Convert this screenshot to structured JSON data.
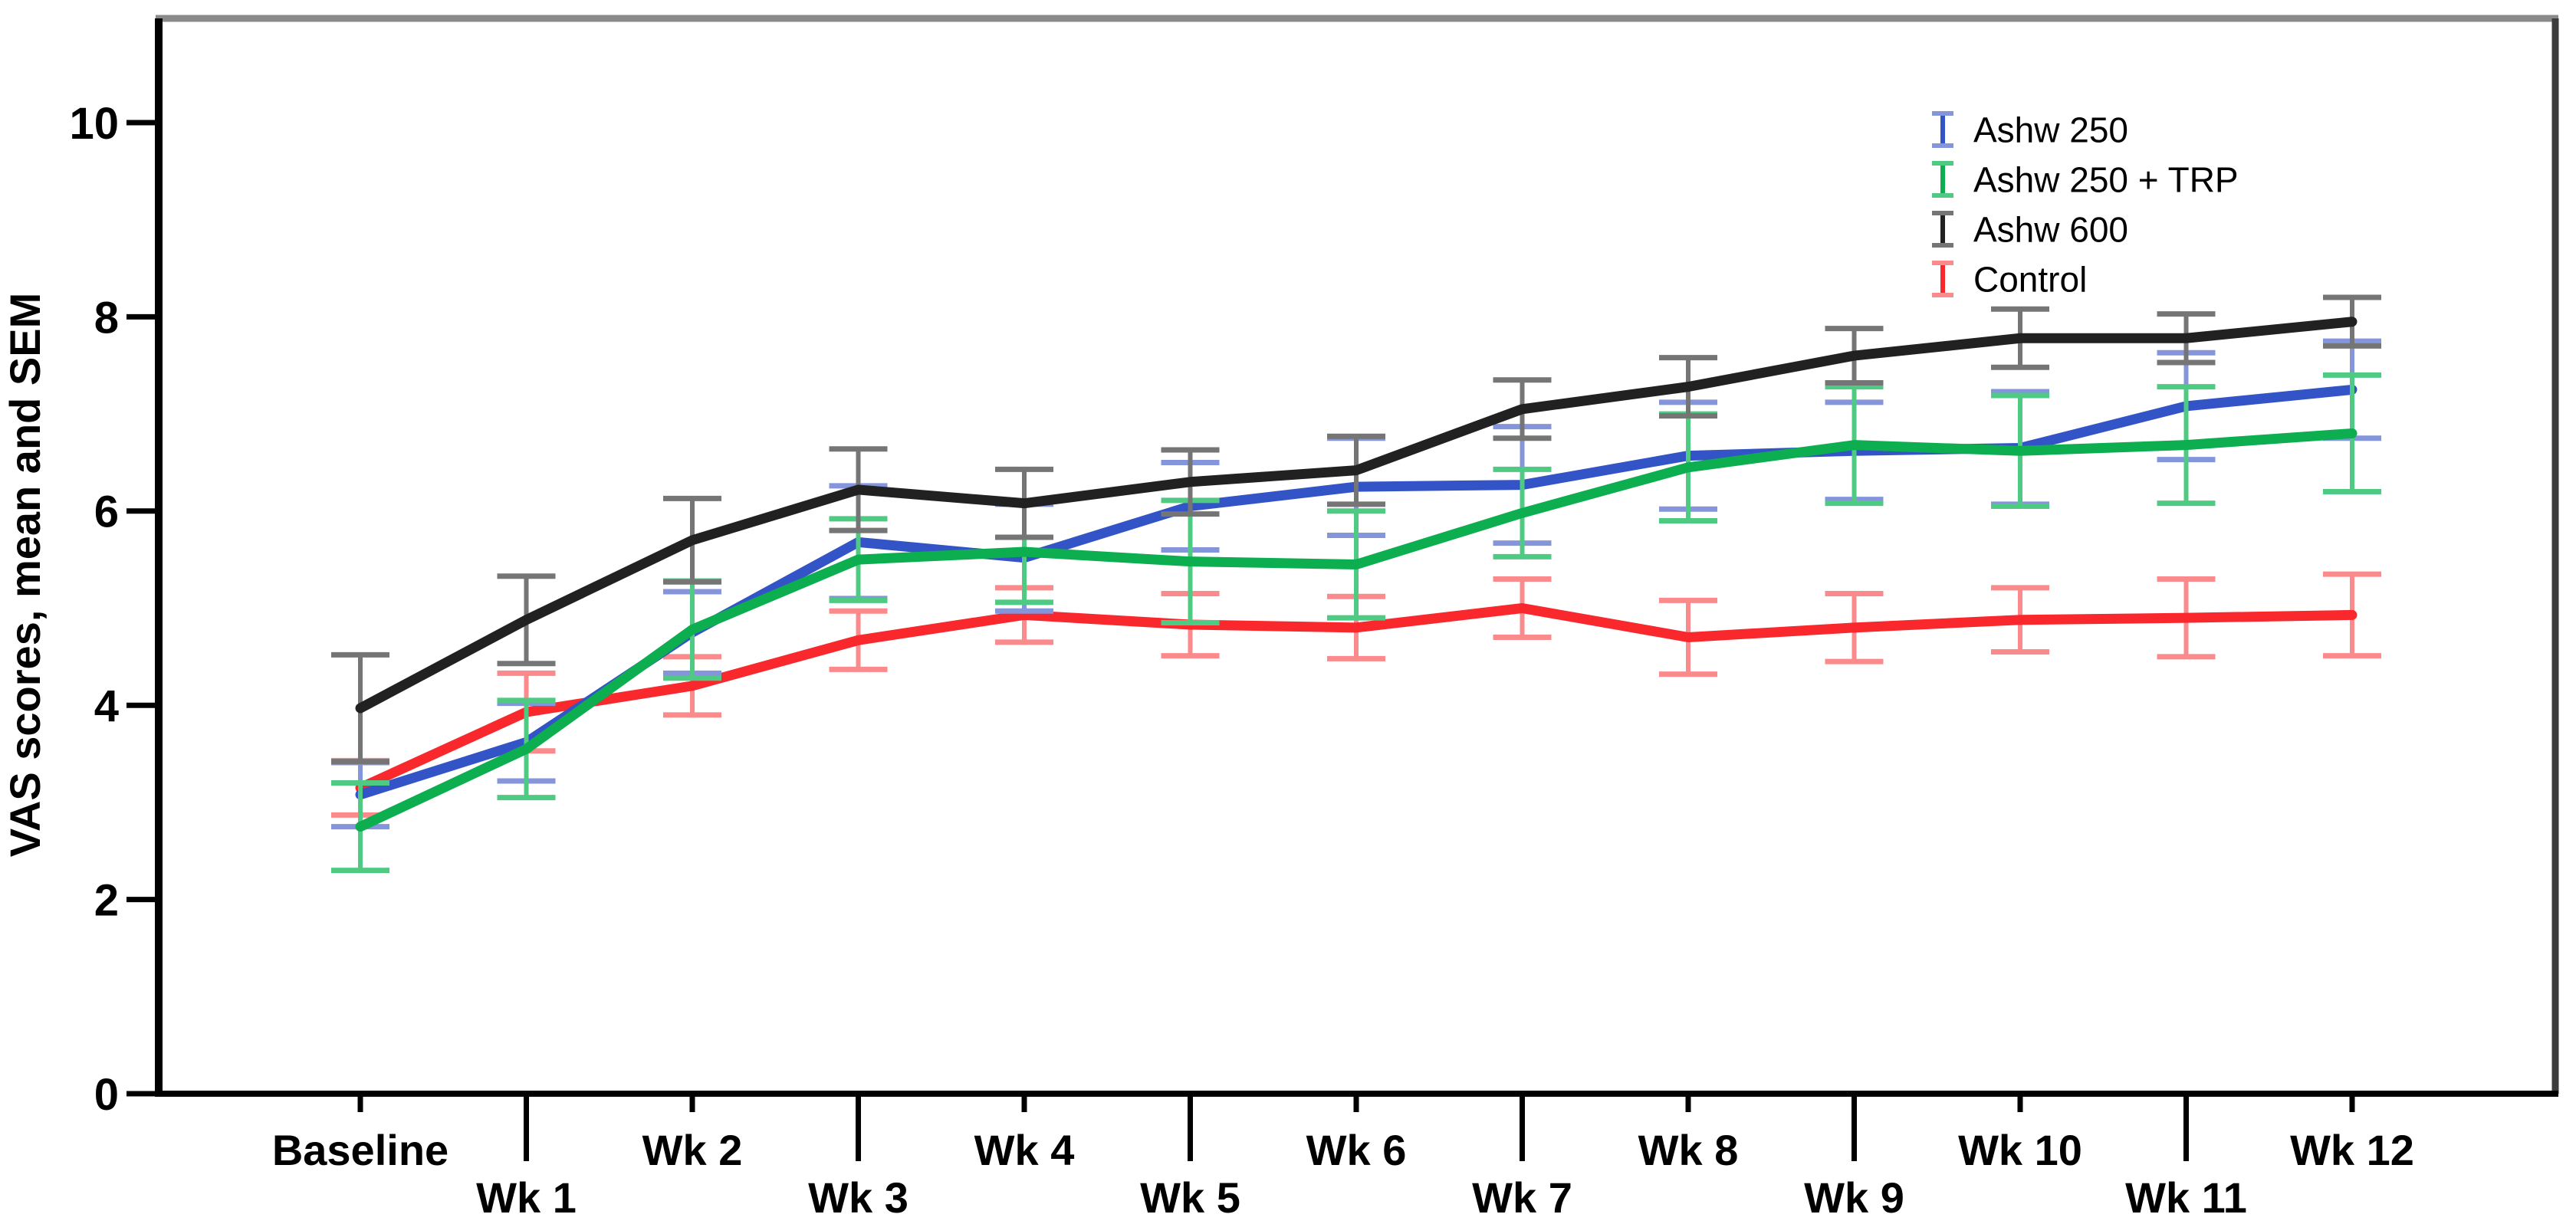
{
  "chart_data": {
    "type": "line",
    "title": "",
    "xlabel": "",
    "ylabel": "VAS scores, mean and SEM",
    "ylim": [
      0,
      11.1
    ],
    "yticks": [
      0,
      2,
      4,
      6,
      8,
      10
    ],
    "grid": false,
    "legend_position": "top-right-inside",
    "error_bars": "SEM",
    "categories": [
      "Baseline",
      "Wk 1",
      "Wk 2",
      "Wk 3",
      "Wk 4",
      "Wk 5",
      "Wk 6",
      "Wk 7",
      "Wk 8",
      "Wk 9",
      "Wk 10",
      "Wk 11",
      "Wk 12"
    ],
    "series": [
      {
        "name": "Ashw 250",
        "color": "#3354c6",
        "error_color": "#8495dc",
        "values": [
          3.08,
          3.62,
          4.75,
          5.68,
          5.52,
          6.05,
          6.25,
          6.27,
          6.57,
          6.62,
          6.65,
          7.08,
          7.25
        ],
        "sem": [
          0.33,
          0.4,
          0.42,
          0.58,
          0.55,
          0.45,
          0.5,
          0.6,
          0.55,
          0.5,
          0.58,
          0.55,
          0.5
        ]
      },
      {
        "name": "Ashw 250 + TRP",
        "color": "#0cae50",
        "error_color": "#4fca82",
        "values": [
          2.75,
          3.55,
          4.78,
          5.5,
          5.58,
          5.48,
          5.45,
          5.98,
          6.45,
          6.68,
          6.62,
          6.68,
          6.8
        ],
        "sem": [
          0.45,
          0.5,
          0.5,
          0.42,
          0.52,
          0.63,
          0.55,
          0.45,
          0.55,
          0.6,
          0.57,
          0.6,
          0.6
        ]
      },
      {
        "name": "Ashw 600",
        "color": "#212121",
        "error_color": "#757575",
        "values": [
          3.97,
          4.88,
          5.7,
          6.22,
          6.08,
          6.3,
          6.42,
          7.05,
          7.28,
          7.6,
          7.78,
          7.78,
          7.95
        ],
        "sem": [
          0.55,
          0.45,
          0.43,
          0.42,
          0.35,
          0.33,
          0.35,
          0.3,
          0.3,
          0.28,
          0.3,
          0.25,
          0.25
        ]
      },
      {
        "name": "Control",
        "color": "#f8282c",
        "error_color": "#fb8a8d",
        "values": [
          3.15,
          3.93,
          4.2,
          4.67,
          4.93,
          4.83,
          4.8,
          5.0,
          4.7,
          4.8,
          4.88,
          4.9,
          4.93
        ],
        "sem": [
          0.28,
          0.4,
          0.3,
          0.3,
          0.28,
          0.32,
          0.32,
          0.3,
          0.38,
          0.35,
          0.33,
          0.4,
          0.42
        ]
      }
    ]
  },
  "frame": {
    "top_border_color": "#8a8a8a",
    "right_border_color": "#3c3c3c",
    "axis_color": "#000000"
  }
}
